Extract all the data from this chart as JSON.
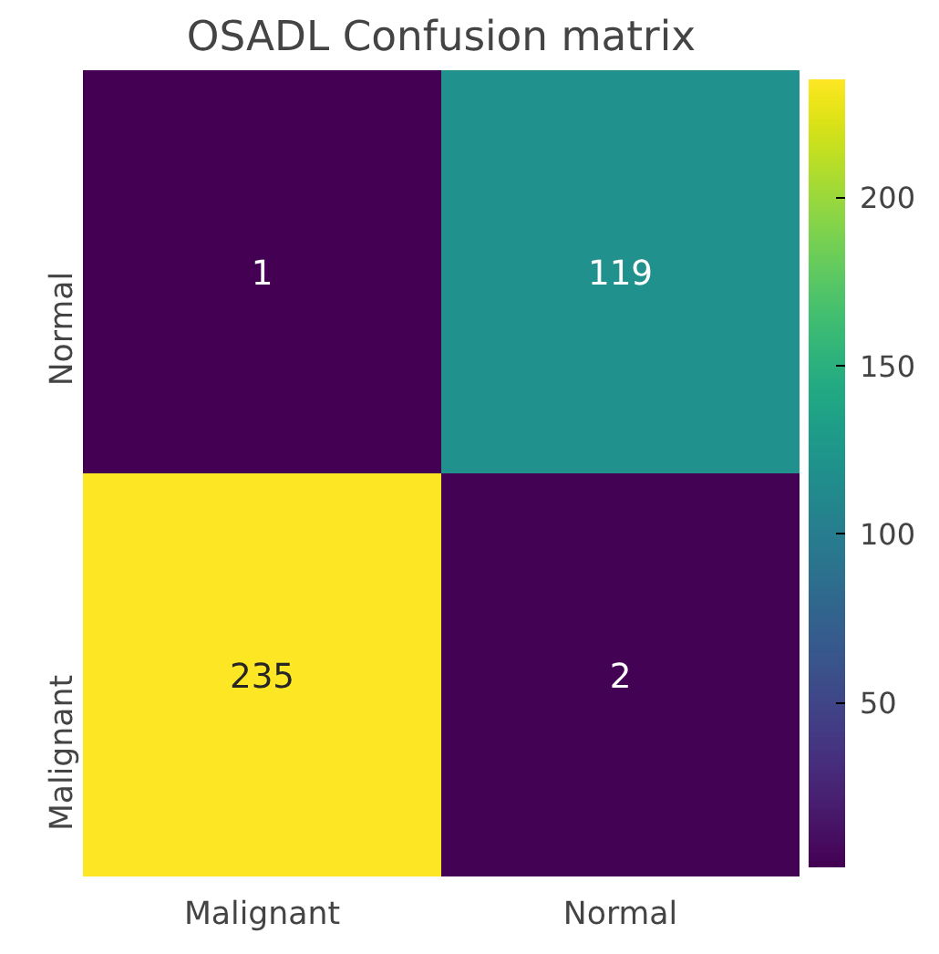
{
  "chart_data": {
    "type": "heatmap",
    "title": "OSADL Confusion matrix",
    "categories": [
      "Malignant",
      "Normal"
    ],
    "y_categories": [
      "Normal",
      "Malignant"
    ],
    "cells": [
      [
        1,
        119
      ],
      [
        235,
        2
      ]
    ],
    "clim": [
      1,
      235
    ],
    "cticks": [
      50,
      100,
      150,
      200
    ],
    "data_labels": true
  }
}
